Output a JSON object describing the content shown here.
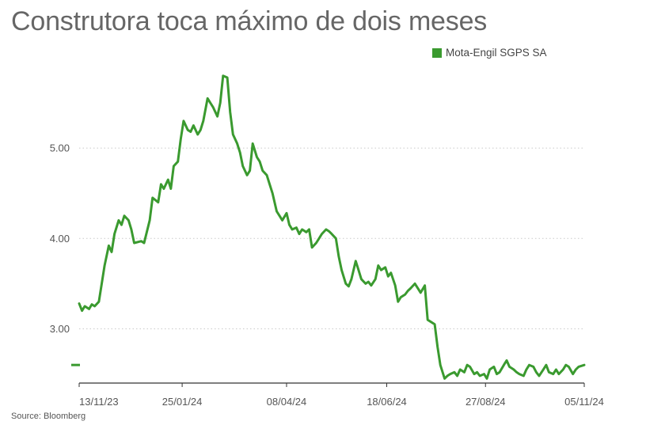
{
  "chart_data": {
    "type": "line",
    "title": "Construtora toca máximo de dois meses",
    "source": "Source: Bloomberg",
    "xlabel": "",
    "ylabel": "",
    "ylim": [
      2.4,
      5.85
    ],
    "yticks": [
      {
        "value": 3.0,
        "label": "3.00"
      },
      {
        "value": 4.0,
        "label": "4.00"
      },
      {
        "value": 5.0,
        "label": "5.00"
      }
    ],
    "xticks": [
      {
        "date": "2023-11-13",
        "label": "13/11/23"
      },
      {
        "date": "2024-01-25",
        "label": "25/01/24"
      },
      {
        "date": "2024-04-08",
        "label": "08/04/24"
      },
      {
        "date": "2024-06-18",
        "label": "18/06/24"
      },
      {
        "date": "2024-08-27",
        "label": "27/08/24"
      },
      {
        "date": "2024-11-05",
        "label": "05/11/24"
      }
    ],
    "grid": true,
    "legend_position": "top-right",
    "current_value": 2.6,
    "series": [
      {
        "name": "Mota-Engil SGPS SA",
        "color": "#3a9a2f",
        "points": [
          [
            "2023-11-13",
            3.28
          ],
          [
            "2023-11-15",
            3.2
          ],
          [
            "2023-11-17",
            3.25
          ],
          [
            "2023-11-20",
            3.22
          ],
          [
            "2023-11-22",
            3.27
          ],
          [
            "2023-11-24",
            3.25
          ],
          [
            "2023-11-27",
            3.3
          ],
          [
            "2023-11-29",
            3.5
          ],
          [
            "2023-12-01",
            3.7
          ],
          [
            "2023-12-04",
            3.92
          ],
          [
            "2023-12-06",
            3.85
          ],
          [
            "2023-12-08",
            4.05
          ],
          [
            "2023-12-11",
            4.2
          ],
          [
            "2023-12-13",
            4.15
          ],
          [
            "2023-12-15",
            4.25
          ],
          [
            "2023-12-18",
            4.2
          ],
          [
            "2023-12-20",
            4.1
          ],
          [
            "2023-12-22",
            3.95
          ],
          [
            "2023-12-27",
            3.97
          ],
          [
            "2023-12-29",
            3.95
          ],
          [
            "2024-01-02",
            4.2
          ],
          [
            "2024-01-04",
            4.45
          ],
          [
            "2024-01-08",
            4.4
          ],
          [
            "2024-01-10",
            4.6
          ],
          [
            "2024-01-12",
            4.55
          ],
          [
            "2024-01-15",
            4.65
          ],
          [
            "2024-01-17",
            4.55
          ],
          [
            "2024-01-19",
            4.8
          ],
          [
            "2024-01-22",
            4.85
          ],
          [
            "2024-01-24",
            5.1
          ],
          [
            "2024-01-26",
            5.3
          ],
          [
            "2024-01-29",
            5.2
          ],
          [
            "2024-01-31",
            5.18
          ],
          [
            "2024-02-02",
            5.25
          ],
          [
            "2024-02-05",
            5.15
          ],
          [
            "2024-02-07",
            5.2
          ],
          [
            "2024-02-09",
            5.3
          ],
          [
            "2024-02-12",
            5.55
          ],
          [
            "2024-02-14",
            5.5
          ],
          [
            "2024-02-16",
            5.45
          ],
          [
            "2024-02-19",
            5.35
          ],
          [
            "2024-02-21",
            5.5
          ],
          [
            "2024-02-23",
            5.8
          ],
          [
            "2024-02-26",
            5.78
          ],
          [
            "2024-02-28",
            5.4
          ],
          [
            "2024-03-01",
            5.15
          ],
          [
            "2024-03-04",
            5.05
          ],
          [
            "2024-03-06",
            4.95
          ],
          [
            "2024-03-08",
            4.8
          ],
          [
            "2024-03-11",
            4.7
          ],
          [
            "2024-03-13",
            4.75
          ],
          [
            "2024-03-15",
            5.05
          ],
          [
            "2024-03-18",
            4.9
          ],
          [
            "2024-03-20",
            4.85
          ],
          [
            "2024-03-22",
            4.75
          ],
          [
            "2024-03-25",
            4.7
          ],
          [
            "2024-03-27",
            4.6
          ],
          [
            "2024-03-29",
            4.5
          ],
          [
            "2024-04-01",
            4.3
          ],
          [
            "2024-04-03",
            4.25
          ],
          [
            "2024-04-05",
            4.2
          ],
          [
            "2024-04-08",
            4.28
          ],
          [
            "2024-04-10",
            4.15
          ],
          [
            "2024-04-12",
            4.1
          ],
          [
            "2024-04-15",
            4.12
          ],
          [
            "2024-04-17",
            4.05
          ],
          [
            "2024-04-19",
            4.1
          ],
          [
            "2024-04-22",
            4.07
          ],
          [
            "2024-04-24",
            4.1
          ],
          [
            "2024-04-26",
            3.9
          ],
          [
            "2024-04-29",
            3.95
          ],
          [
            "2024-05-01",
            4.0
          ],
          [
            "2024-05-03",
            4.05
          ],
          [
            "2024-05-06",
            4.1
          ],
          [
            "2024-05-08",
            4.08
          ],
          [
            "2024-05-10",
            4.05
          ],
          [
            "2024-05-13",
            4.0
          ],
          [
            "2024-05-15",
            3.8
          ],
          [
            "2024-05-17",
            3.65
          ],
          [
            "2024-05-20",
            3.5
          ],
          [
            "2024-05-22",
            3.47
          ],
          [
            "2024-05-24",
            3.55
          ],
          [
            "2024-05-27",
            3.75
          ],
          [
            "2024-05-29",
            3.65
          ],
          [
            "2024-05-31",
            3.55
          ],
          [
            "2024-06-03",
            3.5
          ],
          [
            "2024-06-05",
            3.52
          ],
          [
            "2024-06-07",
            3.48
          ],
          [
            "2024-06-10",
            3.55
          ],
          [
            "2024-06-12",
            3.7
          ],
          [
            "2024-06-14",
            3.65
          ],
          [
            "2024-06-17",
            3.68
          ],
          [
            "2024-06-19",
            3.58
          ],
          [
            "2024-06-21",
            3.62
          ],
          [
            "2024-06-24",
            3.48
          ],
          [
            "2024-06-26",
            3.3
          ],
          [
            "2024-06-28",
            3.35
          ],
          [
            "2024-07-01",
            3.38
          ],
          [
            "2024-07-03",
            3.42
          ],
          [
            "2024-07-05",
            3.45
          ],
          [
            "2024-07-08",
            3.5
          ],
          [
            "2024-07-10",
            3.45
          ],
          [
            "2024-07-12",
            3.4
          ],
          [
            "2024-07-15",
            3.48
          ],
          [
            "2024-07-17",
            3.1
          ],
          [
            "2024-07-19",
            3.08
          ],
          [
            "2024-07-22",
            3.05
          ],
          [
            "2024-07-24",
            2.8
          ],
          [
            "2024-07-26",
            2.6
          ],
          [
            "2024-07-29",
            2.45
          ],
          [
            "2024-07-31",
            2.48
          ],
          [
            "2024-08-02",
            2.5
          ],
          [
            "2024-08-05",
            2.52
          ],
          [
            "2024-08-07",
            2.48
          ],
          [
            "2024-08-09",
            2.55
          ],
          [
            "2024-08-12",
            2.52
          ],
          [
            "2024-08-14",
            2.6
          ],
          [
            "2024-08-16",
            2.58
          ],
          [
            "2024-08-19",
            2.5
          ],
          [
            "2024-08-21",
            2.52
          ],
          [
            "2024-08-23",
            2.48
          ],
          [
            "2024-08-26",
            2.5
          ],
          [
            "2024-08-28",
            2.45
          ],
          [
            "2024-08-30",
            2.55
          ],
          [
            "2024-09-02",
            2.58
          ],
          [
            "2024-09-04",
            2.5
          ],
          [
            "2024-09-06",
            2.52
          ],
          [
            "2024-09-09",
            2.6
          ],
          [
            "2024-09-11",
            2.65
          ],
          [
            "2024-09-13",
            2.58
          ],
          [
            "2024-09-16",
            2.55
          ],
          [
            "2024-09-18",
            2.52
          ],
          [
            "2024-09-20",
            2.5
          ],
          [
            "2024-09-23",
            2.48
          ],
          [
            "2024-09-25",
            2.55
          ],
          [
            "2024-09-27",
            2.6
          ],
          [
            "2024-09-30",
            2.58
          ],
          [
            "2024-10-02",
            2.52
          ],
          [
            "2024-10-04",
            2.48
          ],
          [
            "2024-10-07",
            2.55
          ],
          [
            "2024-10-09",
            2.6
          ],
          [
            "2024-10-11",
            2.52
          ],
          [
            "2024-10-14",
            2.5
          ],
          [
            "2024-10-16",
            2.55
          ],
          [
            "2024-10-18",
            2.5
          ],
          [
            "2024-10-21",
            2.55
          ],
          [
            "2024-10-23",
            2.6
          ],
          [
            "2024-10-25",
            2.58
          ],
          [
            "2024-10-28",
            2.5
          ],
          [
            "2024-10-30",
            2.55
          ],
          [
            "2024-11-01",
            2.58
          ],
          [
            "2024-11-05",
            2.6
          ]
        ]
      }
    ]
  }
}
